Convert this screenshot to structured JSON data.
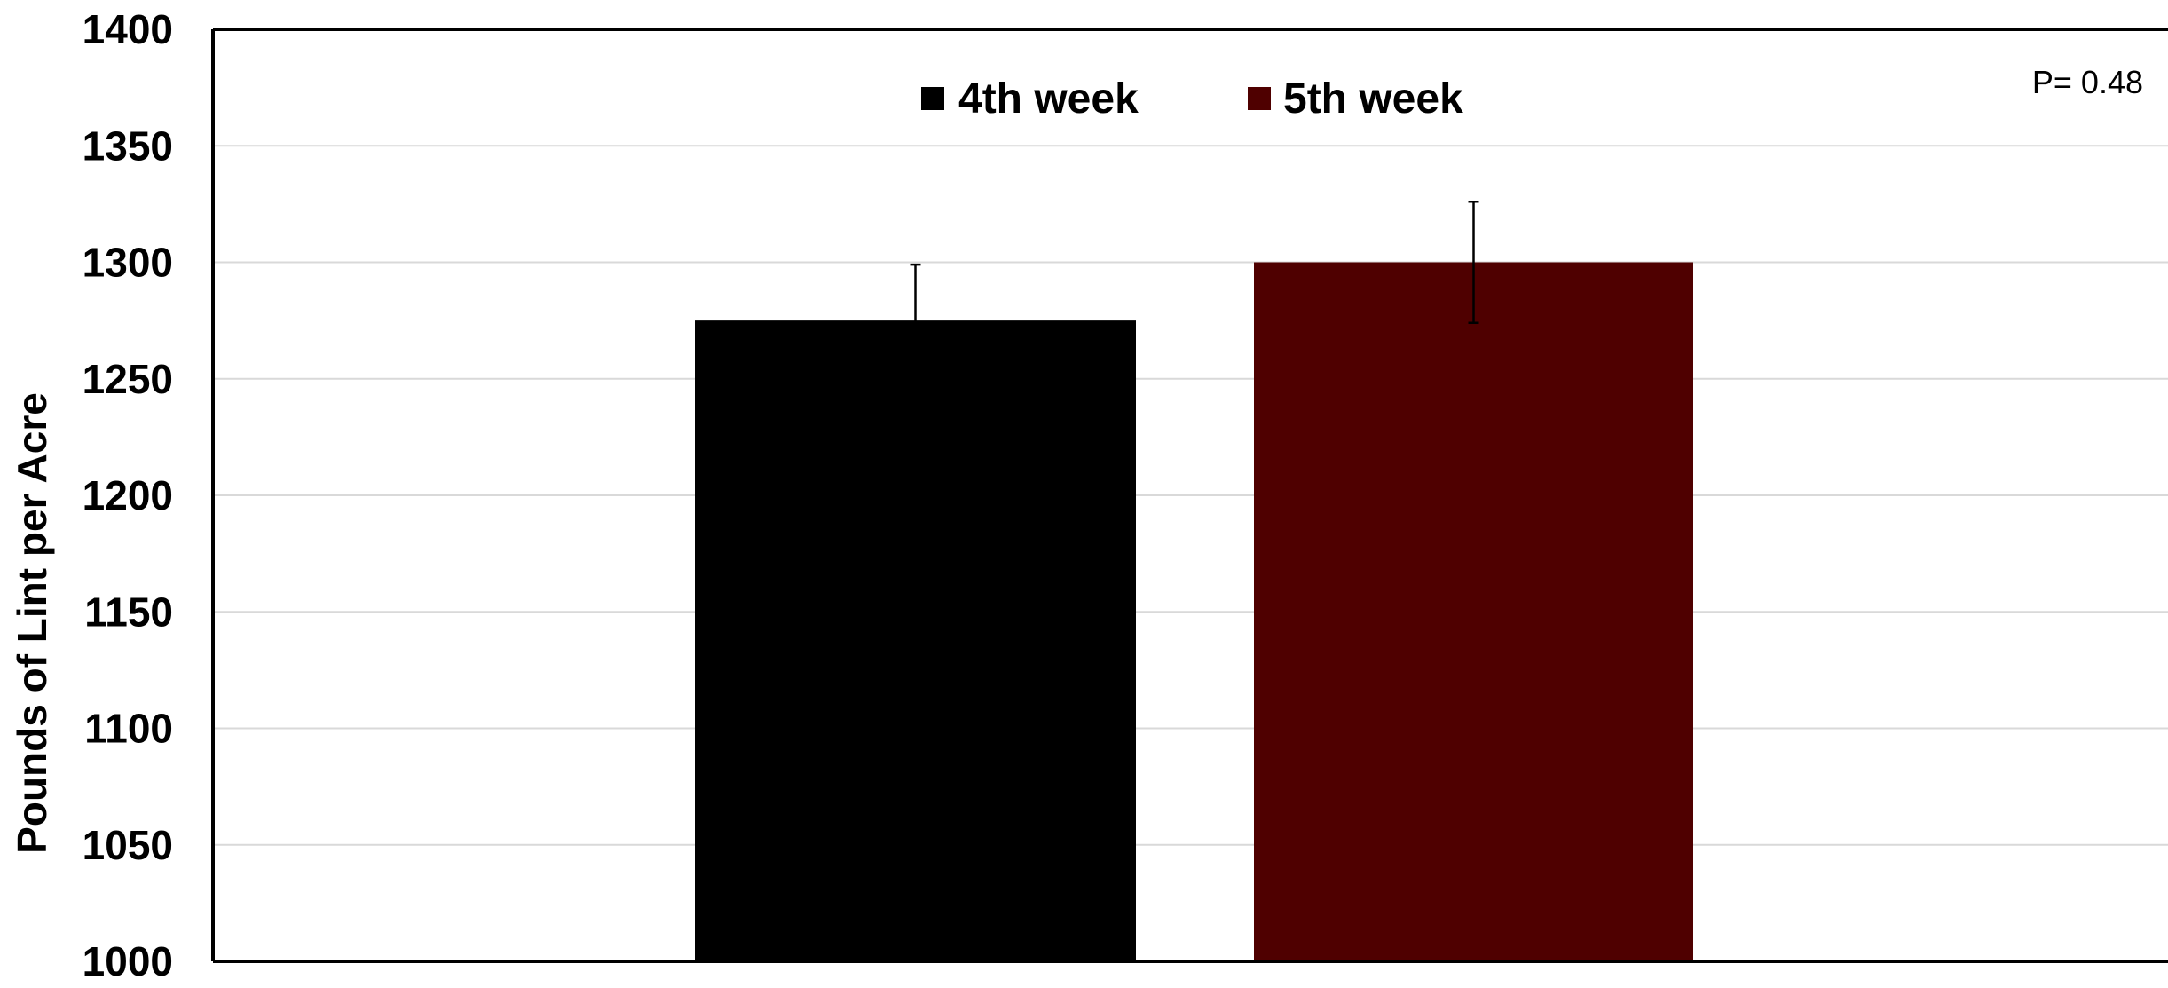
{
  "chart_data": {
    "type": "bar",
    "ylabel": "Pounds of Lint per Acre",
    "ylim": [
      1000,
      1400
    ],
    "yticks": [
      1000,
      1050,
      1100,
      1150,
      1200,
      1250,
      1300,
      1350,
      1400
    ],
    "grid": true,
    "legend_position": "top-center",
    "annotation": "P= 0.48",
    "series": [
      {
        "name": "4th week",
        "value": 1275,
        "error": 24,
        "color": "#000000"
      },
      {
        "name": "5th week",
        "value": 1300,
        "error": 26,
        "color": "#4f0000"
      }
    ]
  }
}
